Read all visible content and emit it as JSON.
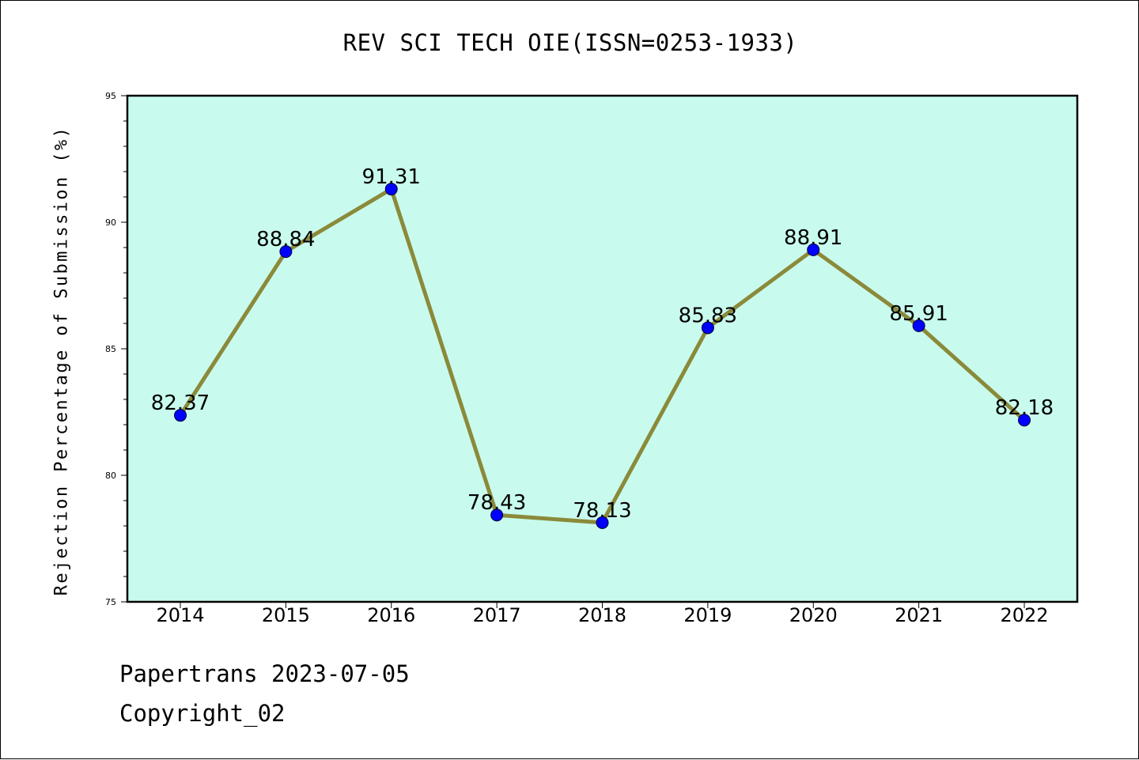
{
  "header": {
    "title": "REV SCI TECH OIE(ISSN=0253-1933)"
  },
  "footer": {
    "line1": "Papertrans 2023-07-05",
    "line2": "Copyright_02"
  },
  "colors": {
    "plot_bg": "#c8fbee",
    "line": "#8b8a3a",
    "marker": "#0000ff",
    "axis": "#000000"
  },
  "chart_data": {
    "type": "line",
    "title": "REV SCI TECH OIE(ISSN=0253-1933)",
    "xlabel": "",
    "ylabel": "Rejection Percentage of Submission (%)",
    "ylim": [
      75,
      95
    ],
    "yticks": [
      75,
      80,
      85,
      90,
      95
    ],
    "grid": false,
    "categories": [
      "2014",
      "2015",
      "2016",
      "2017",
      "2018",
      "2019",
      "2020",
      "2021",
      "2022"
    ],
    "values": [
      82.37,
      88.84,
      91.31,
      78.43,
      78.13,
      85.83,
      88.91,
      85.91,
      82.18
    ],
    "data_labels": [
      "82.37",
      "88.84",
      "91.31",
      "78.43",
      "78.13",
      "85.83",
      "88.91",
      "85.91",
      "82.18"
    ]
  }
}
